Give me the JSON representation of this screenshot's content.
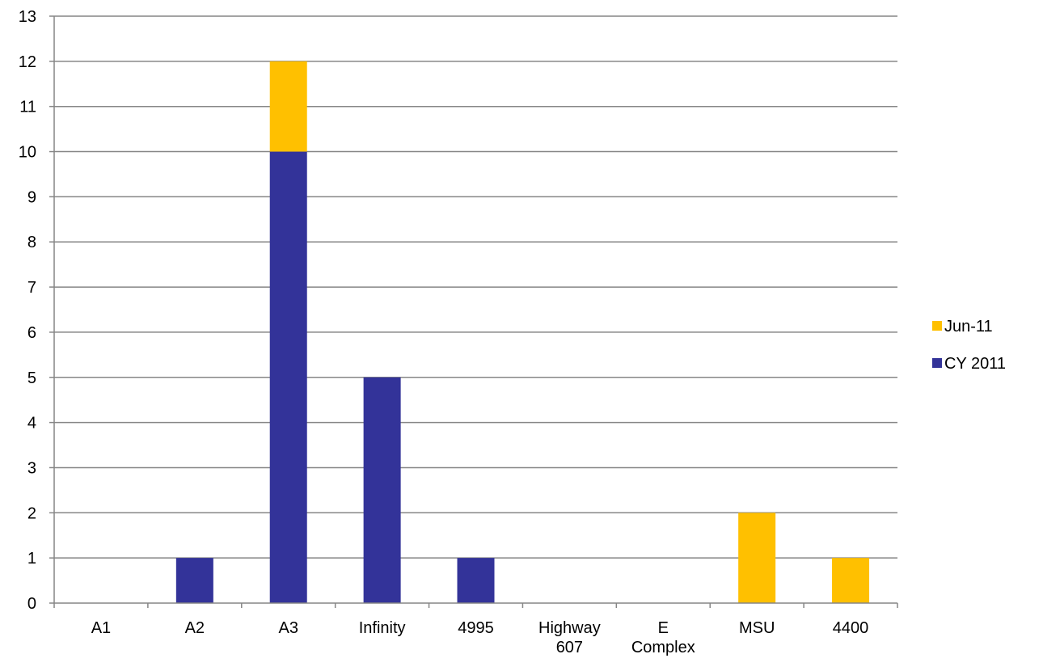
{
  "chart_data": {
    "type": "bar",
    "stacked": true,
    "categories": [
      [
        "A1"
      ],
      [
        "A2"
      ],
      [
        "A3"
      ],
      [
        "Infinity"
      ],
      [
        "4995"
      ],
      [
        "Highway",
        "607"
      ],
      [
        "E",
        "Complex"
      ],
      [
        "MSU"
      ],
      [
        "4400"
      ]
    ],
    "series": [
      {
        "name": "CY 2011",
        "color": "#333399",
        "values": [
          0,
          1,
          10,
          5,
          1,
          0,
          0,
          0,
          0
        ]
      },
      {
        "name": "Jun-11",
        "color": "#FFC000",
        "values": [
          0,
          0,
          2,
          0,
          0,
          0,
          0,
          2,
          1
        ]
      }
    ],
    "ylim": [
      0,
      13
    ],
    "y_ticks": [
      0,
      1,
      2,
      3,
      4,
      5,
      6,
      7,
      8,
      9,
      10,
      11,
      12,
      13
    ],
    "grid": true,
    "legend_position": "right",
    "legend_order": [
      "Jun-11",
      "CY 2011"
    ],
    "title": "",
    "xlabel": "",
    "ylabel": ""
  }
}
